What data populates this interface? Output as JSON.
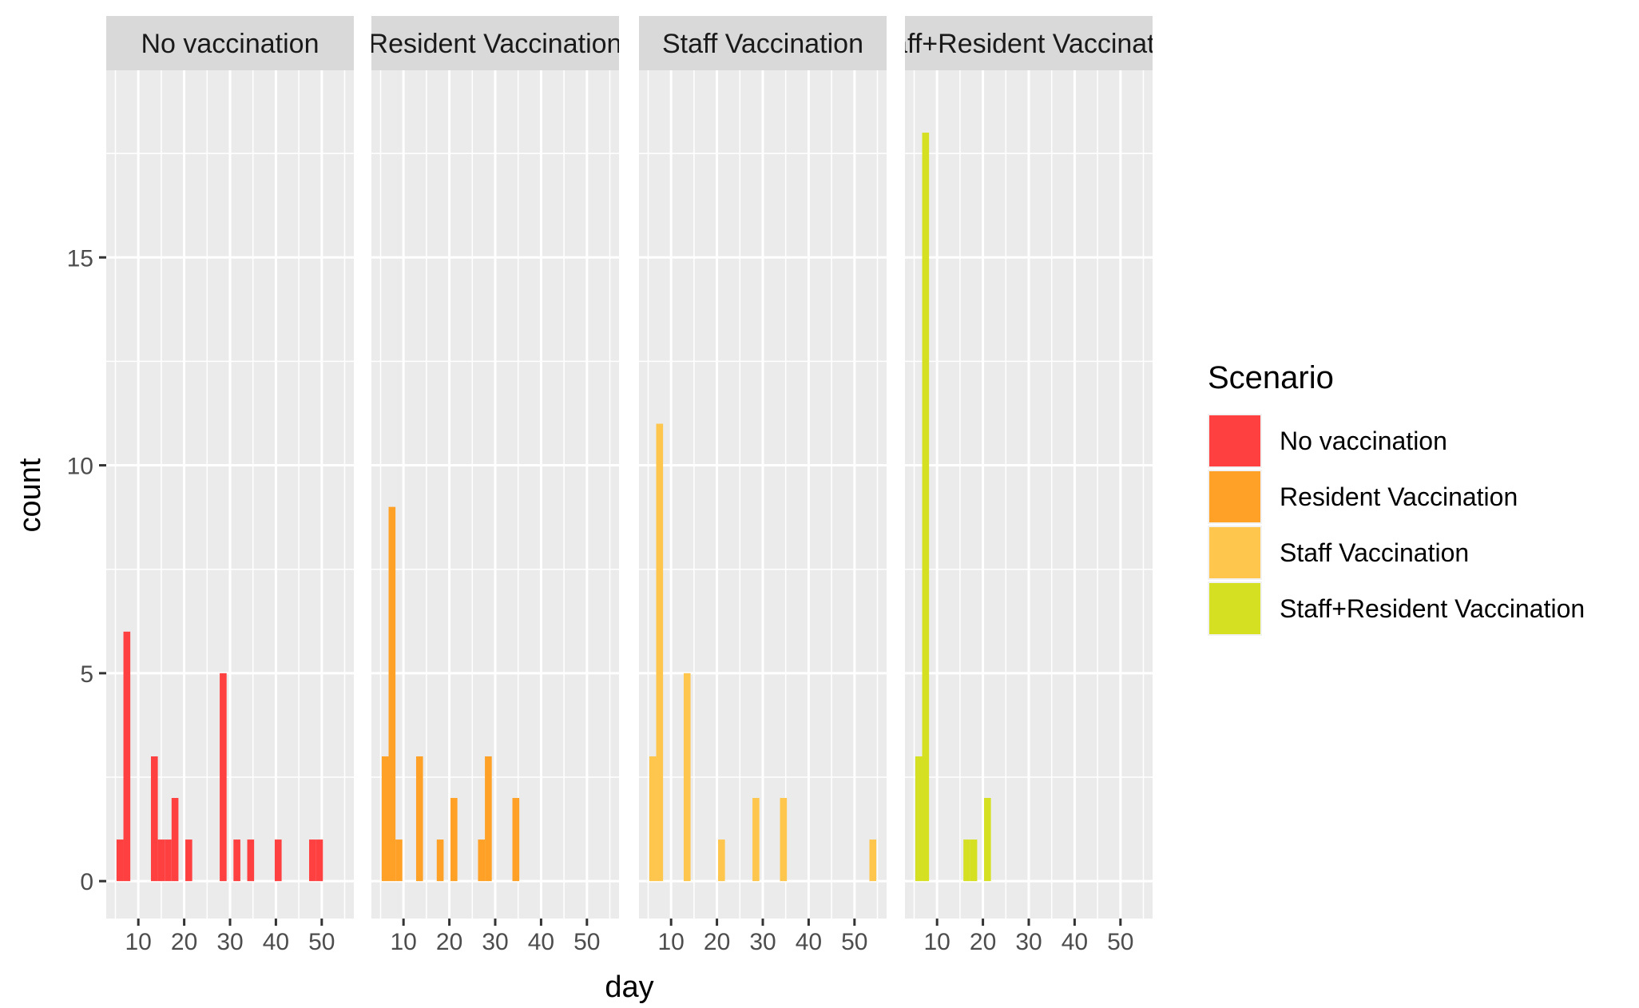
{
  "chart_data": {
    "type": "bar",
    "xlabel": "day",
    "ylabel": "count",
    "xlim": [
      3,
      57
    ],
    "ylim": [
      -0.9,
      19.5
    ],
    "x_ticks": [
      10,
      20,
      30,
      40,
      50
    ],
    "y_ticks": [
      0,
      5,
      10,
      15
    ],
    "bin_width": 1.5,
    "grid": true,
    "legend": {
      "title": "Scenario",
      "position": "right",
      "entries": [
        "No vaccination",
        "Resident Vaccination",
        "Staff Vaccination",
        "Staff+Resident Vaccination"
      ]
    },
    "panels": [
      {
        "label": "No vaccination",
        "color": "#FF4040",
        "bins": [
          {
            "x": 6,
            "count": 1
          },
          {
            "x": 7.5,
            "count": 6
          },
          {
            "x": 13.5,
            "count": 3
          },
          {
            "x": 15,
            "count": 1
          },
          {
            "x": 16.5,
            "count": 1
          },
          {
            "x": 18,
            "count": 2
          },
          {
            "x": 21,
            "count": 1
          },
          {
            "x": 27,
            "count": 0
          },
          {
            "x": 28.5,
            "count": 5
          },
          {
            "x": 31.5,
            "count": 1
          },
          {
            "x": 34.5,
            "count": 1
          },
          {
            "x": 40.5,
            "count": 1
          },
          {
            "x": 48,
            "count": 1
          },
          {
            "x": 49.5,
            "count": 1
          }
        ]
      },
      {
        "label": "Resident Vaccination",
        "color": "#FFA126",
        "bins": [
          {
            "x": 6,
            "count": 3
          },
          {
            "x": 7.5,
            "count": 9
          },
          {
            "x": 9,
            "count": 1
          },
          {
            "x": 12,
            "count": 0
          },
          {
            "x": 13.5,
            "count": 3
          },
          {
            "x": 18,
            "count": 1
          },
          {
            "x": 21,
            "count": 2
          },
          {
            "x": 25.5,
            "count": 0
          },
          {
            "x": 27,
            "count": 1
          },
          {
            "x": 28.5,
            "count": 3
          },
          {
            "x": 34.5,
            "count": 2
          }
        ]
      },
      {
        "label": "Staff Vaccination",
        "color": "#FFC64D",
        "bins": [
          {
            "x": 6,
            "count": 3
          },
          {
            "x": 7.5,
            "count": 11
          },
          {
            "x": 12,
            "count": 0
          },
          {
            "x": 13.5,
            "count": 5
          },
          {
            "x": 21,
            "count": 1
          },
          {
            "x": 27,
            "count": 0
          },
          {
            "x": 28.5,
            "count": 2
          },
          {
            "x": 34.5,
            "count": 2
          },
          {
            "x": 54,
            "count": 1
          }
        ]
      },
      {
        "label": "Staff+Resident Vaccination",
        "color": "#D4E021",
        "bins": [
          {
            "x": 6,
            "count": 3
          },
          {
            "x": 7.5,
            "count": 18
          },
          {
            "x": 16.5,
            "count": 1
          },
          {
            "x": 18,
            "count": 1
          },
          {
            "x": 21,
            "count": 2
          }
        ]
      }
    ]
  }
}
